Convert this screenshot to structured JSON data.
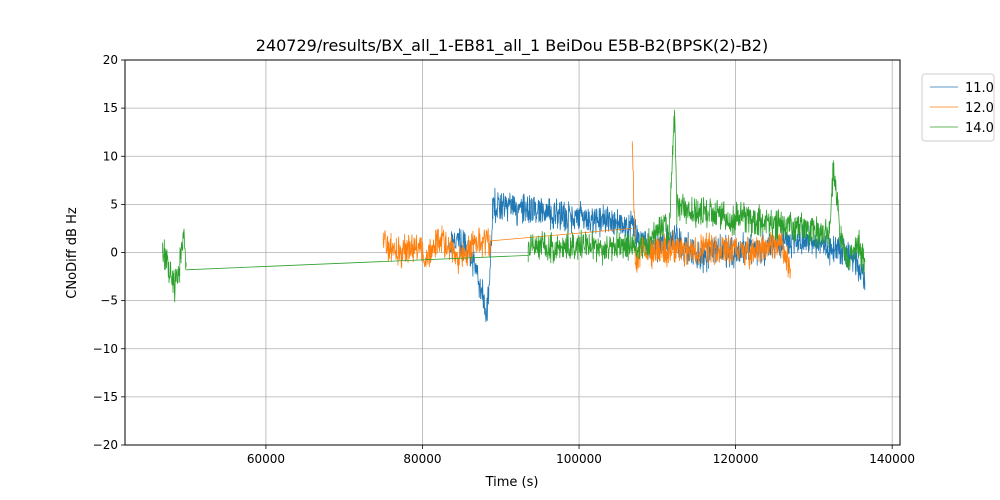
{
  "chart_data": {
    "type": "line",
    "title": "240729/results/BX_all_1-EB81_all_1 BeiDou E5B-B2(BPSK(2)-B2)",
    "xlabel": "Time (s)",
    "ylabel": "CNoDiff dB Hz",
    "xlim": [
      42000,
      141000
    ],
    "ylim": [
      -20,
      20
    ],
    "xticks": [
      60000,
      80000,
      100000,
      120000,
      140000
    ],
    "yticks": [
      -20,
      -15,
      -10,
      -5,
      0,
      5,
      10,
      15,
      20
    ],
    "grid": true,
    "legend_position": "outside-top-right",
    "series": [
      {
        "name": "11.0",
        "color": "#1f77b4",
        "segments": [
          {
            "x_start": 83500,
            "x_end": 89000,
            "points": [
              [
                83500,
                1.0
              ],
              [
                84500,
                1.5
              ],
              [
                85500,
                0.5
              ],
              [
                86500,
                -1.0
              ],
              [
                87200,
                -3.0
              ],
              [
                87800,
                -4.5
              ],
              [
                88200,
                -6.5
              ],
              [
                88600,
                -2.5
              ],
              [
                89000,
                5.0
              ]
            ]
          },
          {
            "x_start": 89000,
            "x_end": 136500,
            "points": [
              [
                89000,
                5.0
              ],
              [
                106800,
                2.8
              ],
              [
                108000,
                1.0
              ],
              [
                110000,
                0.5
              ],
              [
                112000,
                1.5
              ],
              [
                114000,
                0.3
              ],
              [
                116000,
                -0.5
              ],
              [
                118000,
                0.2
              ],
              [
                120000,
                0.0
              ],
              [
                122000,
                0.5
              ],
              [
                124000,
                0.3
              ],
              [
                126000,
                0.8
              ],
              [
                128000,
                1.2
              ],
              [
                130000,
                1.0
              ],
              [
                132000,
                0.5
              ],
              [
                134000,
                0.2
              ],
              [
                135500,
                -1.0
              ],
              [
                136500,
                -3.0
              ]
            ]
          }
        ]
      },
      {
        "name": "12.0",
        "color": "#ff7f0e",
        "segments": [
          {
            "x_start": 75000,
            "x_end": 88700,
            "points": [
              [
                75000,
                2.0
              ],
              [
                75500,
                0.5
              ],
              [
                76500,
                0.0
              ],
              [
                78000,
                0.3
              ],
              [
                79500,
                0.5
              ],
              [
                80500,
                -0.5
              ],
              [
                81500,
                0.8
              ],
              [
                82500,
                1.2
              ],
              [
                83500,
                0.5
              ],
              [
                84500,
                -1.2
              ],
              [
                85500,
                0.0
              ],
              [
                86500,
                1.0
              ],
              [
                87500,
                1.0
              ],
              [
                88700,
                1.2
              ]
            ]
          },
          {
            "x_start": 88700,
            "x_end": 106800,
            "points": [
              [
                88700,
                1.2
              ],
              [
                106800,
                2.5
              ]
            ]
          },
          {
            "x_start": 106800,
            "x_end": 127000,
            "points": [
              [
                106800,
                11.5
              ],
              [
                107200,
                -1.0
              ],
              [
                108000,
                0.5
              ],
              [
                110000,
                0.0
              ],
              [
                112000,
                0.5
              ],
              [
                114000,
                0.2
              ],
              [
                116000,
                0.6
              ],
              [
                118000,
                0.1
              ],
              [
                120000,
                0.4
              ],
              [
                122000,
                0.0
              ],
              [
                124000,
                0.5
              ],
              [
                126000,
                0.8
              ],
              [
                127000,
                -2.0
              ]
            ]
          }
        ]
      },
      {
        "name": "14.0",
        "color": "#2ca02c",
        "segments": [
          {
            "x_start": 46800,
            "x_end": 49800,
            "points": [
              [
                46800,
                1.0
              ],
              [
                47200,
                -1.0
              ],
              [
                47800,
                -2.0
              ],
              [
                48400,
                -3.5
              ],
              [
                49000,
                -1.5
              ],
              [
                49500,
                1.5
              ],
              [
                49800,
                -1.5
              ]
            ]
          },
          {
            "x_start": 49800,
            "x_end": 93500,
            "points": [
              [
                49800,
                -1.8
              ],
              [
                93500,
                -0.3
              ]
            ]
          },
          {
            "x_start": 93500,
            "x_end": 112500,
            "points": [
              [
                93500,
                0.5
              ],
              [
                95000,
                0.8
              ],
              [
                97000,
                0.3
              ],
              [
                99000,
                0.5
              ],
              [
                101000,
                0.8
              ],
              [
                103000,
                0.3
              ],
              [
                105000,
                0.8
              ],
              [
                107000,
                0.5
              ],
              [
                109000,
                1.0
              ],
              [
                110500,
                3.0
              ],
              [
                111500,
                2.0
              ],
              [
                112200,
                14.8
              ],
              [
                112500,
                4.5
              ]
            ]
          },
          {
            "x_start": 112500,
            "x_end": 136500,
            "points": [
              [
                112500,
                4.5
              ],
              [
                132000,
                2.0
              ],
              [
                132500,
                9.0
              ],
              [
                133500,
                1.0
              ],
              [
                134500,
                -1.0
              ],
              [
                135500,
                1.5
              ],
              [
                136500,
                -1.0
              ]
            ]
          }
        ]
      }
    ]
  }
}
